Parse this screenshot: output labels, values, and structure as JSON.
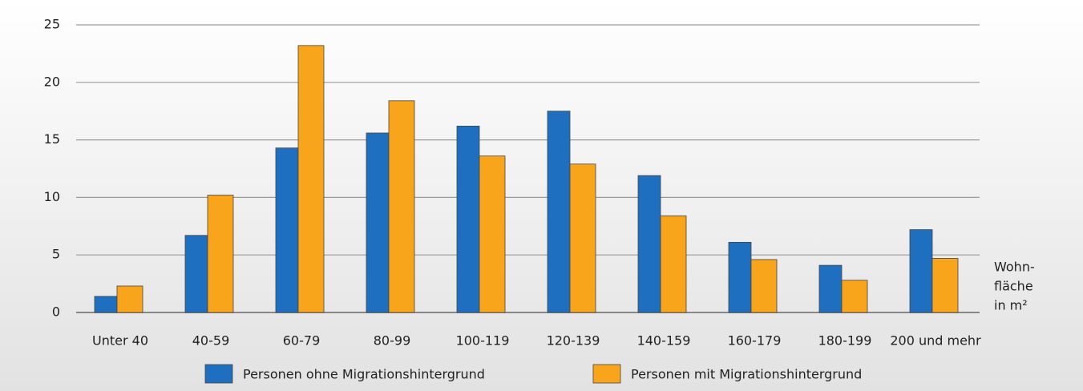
{
  "chart_data": {
    "type": "bar",
    "categories": [
      "Unter 40",
      "40-59",
      "60-79",
      "80-99",
      "100-119",
      "120-139",
      "140-159",
      "160-179",
      "180-199",
      "200 und mehr"
    ],
    "series": [
      {
        "name": "Personen ohne Migrationshintergrund",
        "color": "#1e6fc0",
        "values": [
          1.4,
          6.7,
          14.3,
          15.6,
          16.2,
          17.5,
          11.9,
          6.1,
          4.1,
          7.2
        ]
      },
      {
        "name": "Personen mit Migrationshintergrund",
        "color": "#f8a51c",
        "values": [
          2.3,
          10.2,
          23.2,
          18.4,
          13.6,
          12.9,
          8.4,
          4.6,
          2.8,
          4.7
        ]
      }
    ],
    "x_label": [
      "Wohn-",
      "fläche",
      "in m²"
    ],
    "ylim": [
      0,
      25
    ],
    "yticks": [
      0,
      5,
      10,
      15,
      20,
      25
    ],
    "grid": true
  }
}
